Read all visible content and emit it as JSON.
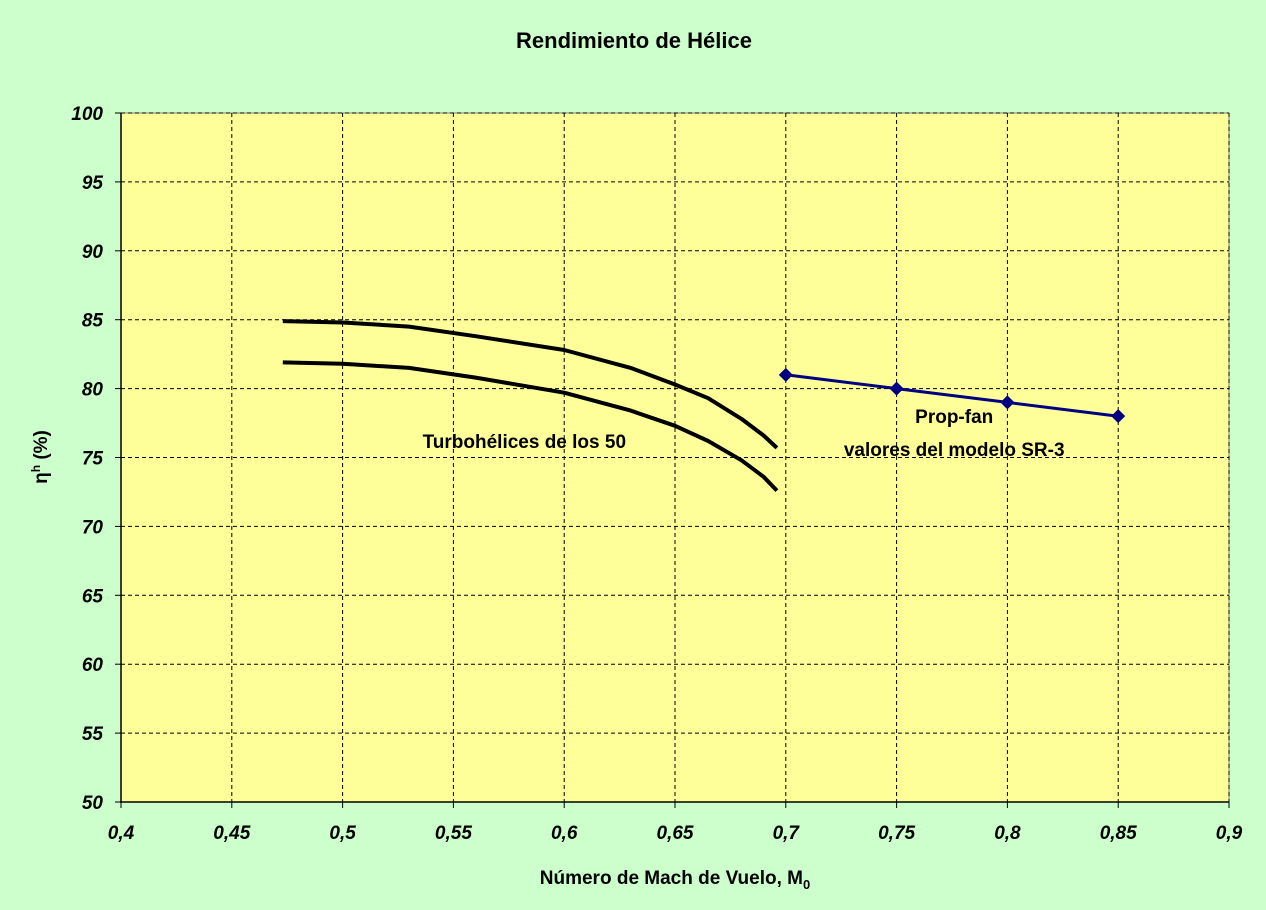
{
  "chart_data": {
    "type": "line",
    "title": "Rendimiento de Hélice",
    "xlabel": {
      "main": "Número de Mach de Vuelo, M",
      "sub": "0"
    },
    "ylabel": {
      "symbol": "η",
      "sup": "h",
      "unit": " (%)"
    },
    "xlim": [
      0.4,
      0.9
    ],
    "ylim": [
      50,
      100
    ],
    "xticks": [
      0.4,
      0.45,
      0.5,
      0.55,
      0.6,
      0.65,
      0.7,
      0.75,
      0.8,
      0.85,
      0.9
    ],
    "yticks": [
      50,
      55,
      60,
      65,
      70,
      75,
      80,
      85,
      90,
      95,
      100
    ],
    "xtick_labels": [
      "0,4",
      "0,45",
      "0,5",
      "0,55",
      "0,6",
      "0,65",
      "0,7",
      "0,75",
      "0,8",
      "0,85",
      "0,9"
    ],
    "ytick_labels": [
      "50",
      "55",
      "60",
      "65",
      "70",
      "75",
      "80",
      "85",
      "90",
      "95",
      "100"
    ],
    "grid": true,
    "series": [
      {
        "color": "#000000",
        "markers": false,
        "points": [
          [
            0.473,
            84.9
          ],
          [
            0.5,
            84.8
          ],
          [
            0.53,
            84.5
          ],
          [
            0.56,
            83.8
          ],
          [
            0.6,
            82.8
          ],
          [
            0.63,
            81.5
          ],
          [
            0.65,
            80.3
          ],
          [
            0.665,
            79.3
          ],
          [
            0.68,
            77.8
          ],
          [
            0.69,
            76.6
          ],
          [
            0.696,
            75.7
          ]
        ]
      },
      {
        "color": "#000000",
        "markers": false,
        "points": [
          [
            0.473,
            81.9
          ],
          [
            0.5,
            81.8
          ],
          [
            0.53,
            81.5
          ],
          [
            0.56,
            80.8
          ],
          [
            0.6,
            79.7
          ],
          [
            0.63,
            78.4
          ],
          [
            0.65,
            77.3
          ],
          [
            0.665,
            76.2
          ],
          [
            0.68,
            74.8
          ],
          [
            0.69,
            73.6
          ],
          [
            0.696,
            72.6
          ]
        ]
      },
      {
        "color": "#000080",
        "markers": true,
        "points": [
          [
            0.7,
            81
          ],
          [
            0.75,
            80
          ],
          [
            0.8,
            79
          ],
          [
            0.85,
            78
          ]
        ]
      }
    ],
    "annotations": [
      {
        "text": "Turbohélices de los 50",
        "x": 0.582,
        "y": 75.7
      },
      {
        "text": "Prop-fan",
        "x": 0.776,
        "y": 77.5
      },
      {
        "text": "valores del modelo SR-3",
        "x": 0.776,
        "y": 75.1
      }
    ],
    "colors": {
      "background": "#CCFFCC",
      "plot_area": "#FFFF99",
      "grid": "#000000",
      "axis": "#000000"
    }
  }
}
